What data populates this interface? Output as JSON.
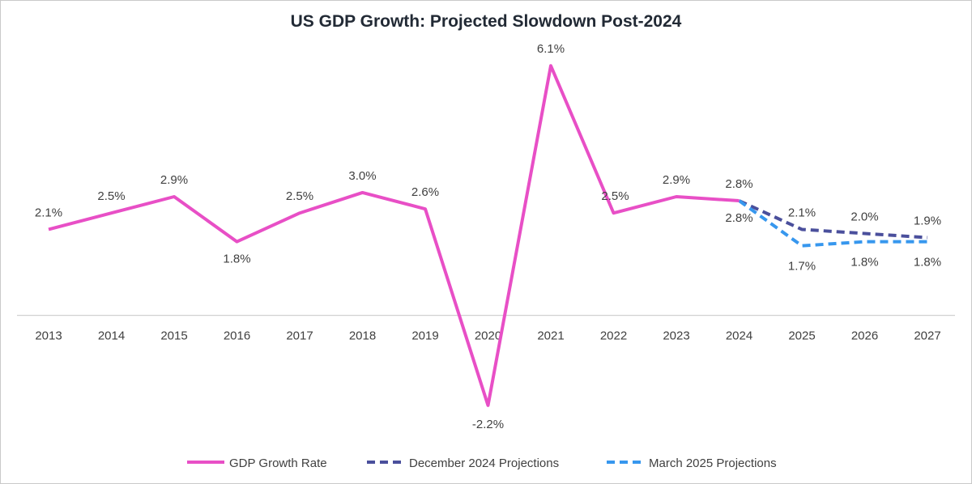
{
  "chart_data": {
    "type": "line",
    "title": "US GDP Growth: Projected Slowdown Post-2024",
    "categories": [
      "2013",
      "2014",
      "2015",
      "2016",
      "2017",
      "2018",
      "2019",
      "2020",
      "2021",
      "2022",
      "2023",
      "2024",
      "2025",
      "2026",
      "2027"
    ],
    "ylim": [
      -2.5,
      6.5
    ],
    "grid": false,
    "legend": "bottom",
    "series": [
      {
        "name": "GDP Growth Rate",
        "color": "#e84fc6",
        "style": "solid",
        "values": [
          2.1,
          2.5,
          2.9,
          1.8,
          2.5,
          3.0,
          2.6,
          -2.2,
          6.1,
          2.5,
          2.9,
          2.8,
          null,
          null,
          null
        ],
        "labels": [
          "2.1%",
          "2.5%",
          "2.9%",
          "1.8%",
          "2.5%",
          "3.0%",
          "2.6%",
          "-2.2%",
          "6.1%",
          "2.5%",
          "2.9%",
          "2.8%",
          null,
          null,
          null
        ]
      },
      {
        "name": "December 2024 Projections",
        "color": "#4a4f9c",
        "style": "dashed",
        "values": [
          null,
          null,
          null,
          null,
          null,
          null,
          null,
          null,
          null,
          null,
          null,
          2.8,
          2.1,
          2.0,
          1.9
        ],
        "labels": [
          null,
          null,
          null,
          null,
          null,
          null,
          null,
          null,
          null,
          null,
          null,
          null,
          "2.1%",
          "2.0%",
          "1.9%"
        ]
      },
      {
        "name": "March 2025 Projections",
        "color": "#3797ee",
        "style": "dashed",
        "values": [
          null,
          null,
          null,
          null,
          null,
          null,
          null,
          null,
          null,
          null,
          null,
          2.8,
          1.7,
          1.8,
          1.8
        ],
        "labels": [
          null,
          null,
          null,
          null,
          null,
          null,
          null,
          null,
          null,
          null,
          null,
          "2.8%",
          "1.7%",
          "1.8%",
          "1.8%"
        ]
      }
    ]
  }
}
